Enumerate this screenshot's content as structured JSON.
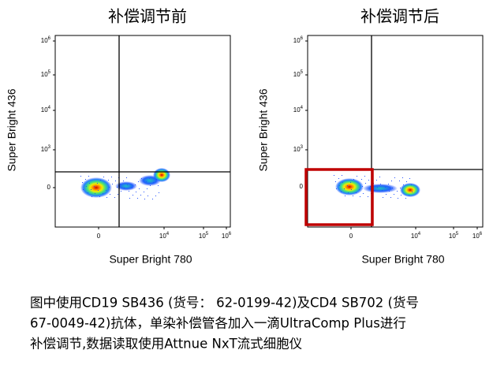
{
  "panels": [
    {
      "title": "补偿调节前",
      "x_label": "Super Bright 780",
      "y_label": "Super Bright 436",
      "yticks": [
        {
          "base": "10",
          "exp": "6"
        },
        {
          "base": "10",
          "exp": "5"
        },
        {
          "base": "10",
          "exp": "4"
        },
        {
          "base": "10",
          "exp": "3"
        },
        {
          "base": "0"
        }
      ],
      "xticks": [
        {
          "base": "0"
        },
        {
          "base": "10",
          "exp": "4"
        },
        {
          "base": "10",
          "exp": "5"
        },
        {
          "base": "10",
          "exp": "6"
        }
      ]
    },
    {
      "title": "补偿调节后",
      "x_label": "Super Bright 780",
      "y_label": "Super Bright 436",
      "yticks": [
        {
          "base": "10",
          "exp": "6"
        },
        {
          "base": "10",
          "exp": "5"
        },
        {
          "base": "10",
          "exp": "4"
        },
        {
          "base": "10",
          "exp": "3"
        },
        {
          "base": "0"
        }
      ],
      "xticks": [
        {
          "base": "0"
        },
        {
          "base": "10",
          "exp": "4"
        },
        {
          "base": "10",
          "exp": "5"
        },
        {
          "base": "10",
          "exp": "6"
        }
      ]
    }
  ],
  "caption": [
    "图中使用CD19 SB436 (货号：  62-0199-42)及CD4 SB702 (货号",
    "67-0049-42)抗体，单染补偿管各加入一滴UltraComp Plus进行",
    "补偿调节,数据读取使用Attnue NxT流式细胞仪"
  ]
}
